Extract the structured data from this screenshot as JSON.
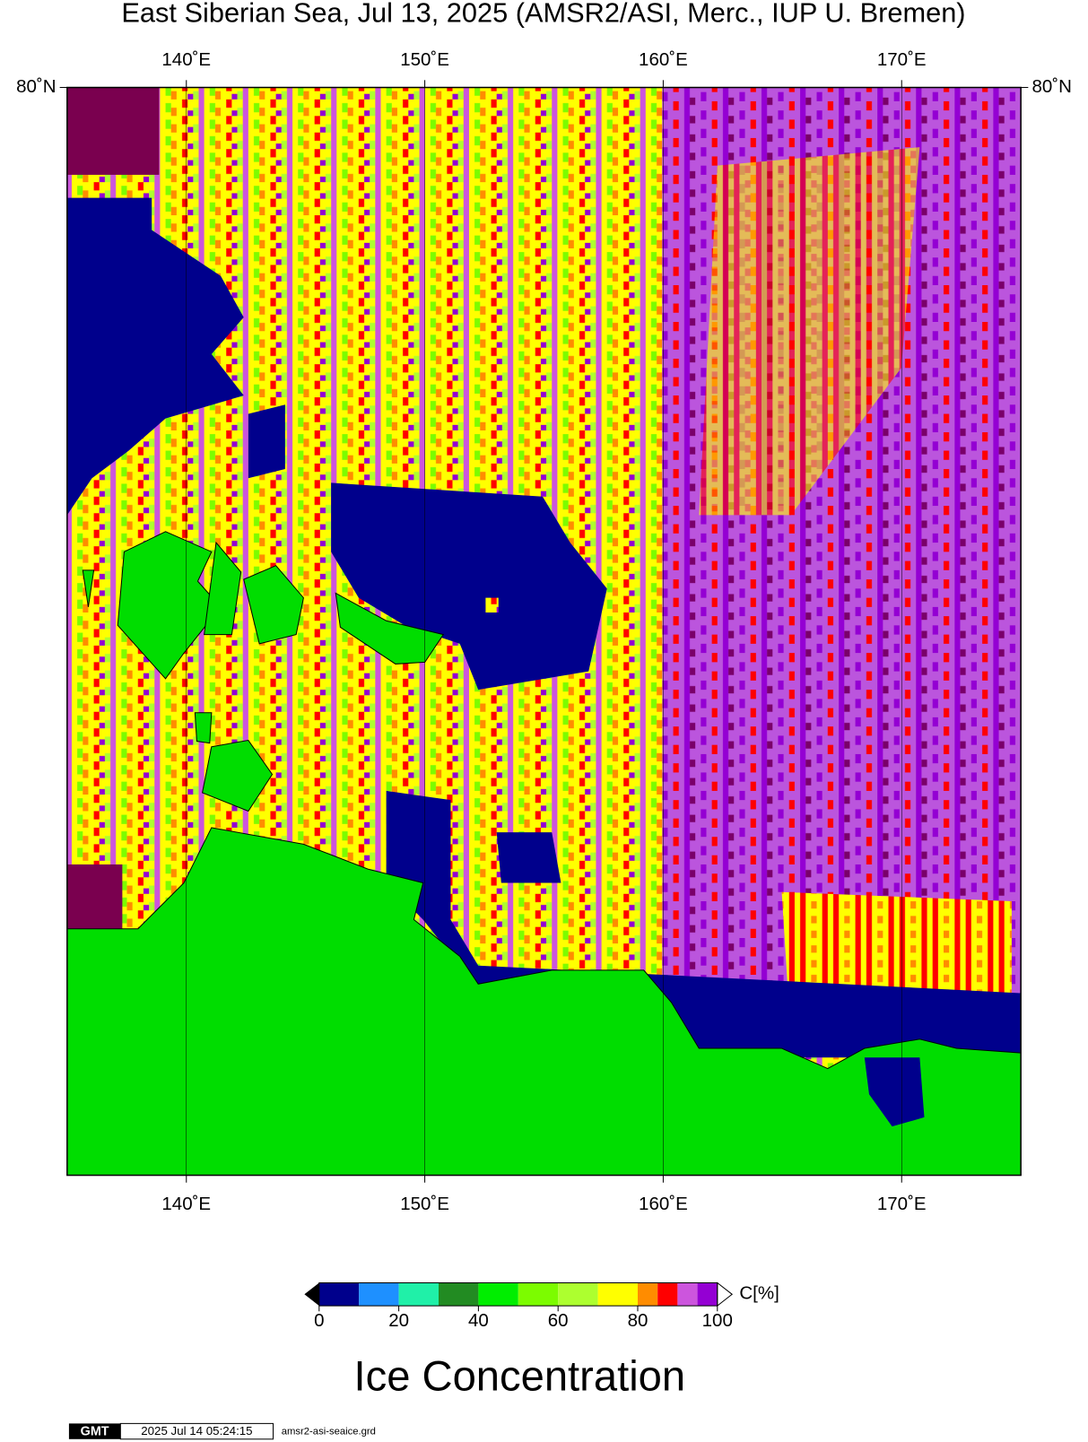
{
  "title": "East Siberian Sea, Jul 13, 2025 (AMSR2/ASI, Merc., IUP U. Bremen)",
  "map": {
    "xlim": [
      135,
      175
    ],
    "xticks": [
      {
        "value": 140,
        "label": "140˚E"
      },
      {
        "value": 150,
        "label": "150˚E"
      },
      {
        "value": 160,
        "label": "160˚E"
      },
      {
        "value": 170,
        "label": "170˚E"
      }
    ],
    "yticks": [
      {
        "value": 80,
        "label": "80˚N"
      }
    ]
  },
  "colorbar": {
    "bins": [
      0,
      10,
      20,
      30,
      40,
      50,
      60,
      70,
      80,
      85,
      90,
      95,
      100
    ],
    "colors": [
      "#00008c",
      "#1e90ff",
      "#20f0a8",
      "#228b22",
      "#00ee00",
      "#7cfc00",
      "#adff2f",
      "#ffff00",
      "#ff8c00",
      "#ff0000",
      "#cc55dd",
      "#9400d3"
    ],
    "ticks": [
      0,
      20,
      40,
      60,
      80,
      100
    ],
    "unit": "C[%]",
    "label": "Ice Concentration"
  },
  "footer": {
    "logo": "GMT",
    "timestamp": "2025 Jul 14 05:24:15",
    "file": "amsr2-asi-seaice.grd"
  }
}
